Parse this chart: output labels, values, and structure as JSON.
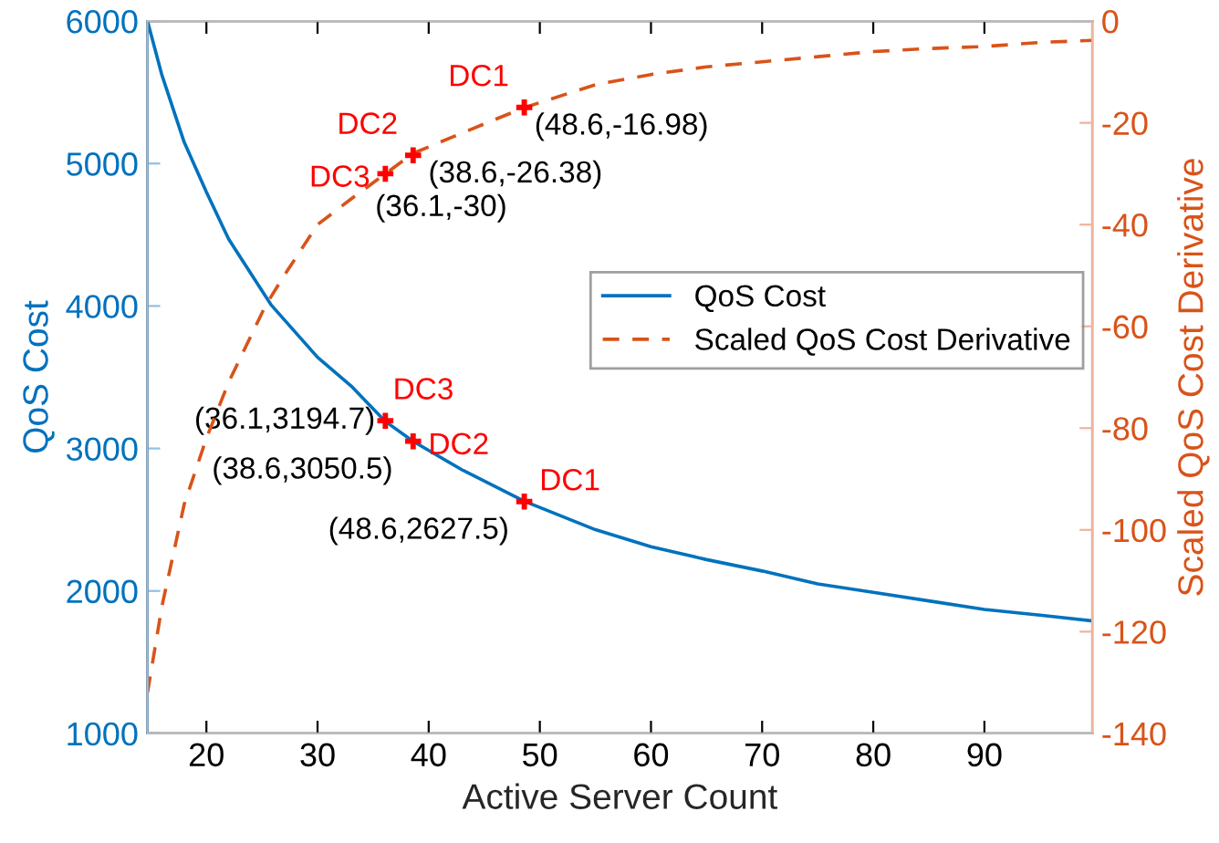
{
  "chart_data": {
    "type": "line",
    "xlabel": "Active Server Count",
    "ylabel": "QoS Cost",
    "y2label": "Scaled QoS Cost Derivative",
    "xlim": [
      14.7,
      99.7
    ],
    "xticks": [
      20,
      30,
      40,
      50,
      60,
      70,
      80,
      90
    ],
    "ylim": [
      1000,
      6000
    ],
    "yticks": [
      1000,
      2000,
      3000,
      4000,
      5000,
      6000
    ],
    "y2lim": [
      -140,
      0
    ],
    "y2ticks": [
      -140,
      -120,
      -100,
      -80,
      -60,
      -40,
      -20,
      0
    ],
    "grid": false,
    "legend": "right",
    "series": [
      {
        "name": "QoS Cost",
        "color": "#0072bd",
        "line_style": "solid",
        "marker": "none",
        "x": [
          14.7,
          16,
          18,
          20,
          22,
          25.8,
          30,
          33,
          36.1,
          38.6,
          43,
          48.6,
          55,
          60,
          65,
          70,
          75,
          80,
          85,
          90,
          95,
          99.7
        ],
        "values": [
          6000,
          5620,
          5150,
          4800,
          4470,
          4010,
          3640,
          3440,
          3190,
          3050,
          2850,
          2630,
          2430,
          2310,
          2220,
          2140,
          2050,
          1990,
          1930,
          1870,
          1830,
          1790
        ]
      },
      {
        "name": "Scaled QoS Cost Derivative",
        "axis": "y2",
        "color": "#d95319",
        "line_style": "dashed",
        "marker": "none",
        "x": [
          14.7,
          16,
          18,
          20,
          22,
          25.3,
          27,
          30,
          33,
          36.1,
          38.6,
          43,
          48.6,
          55,
          60,
          65,
          70,
          75,
          80,
          85,
          90,
          95,
          99.7
        ],
        "values": [
          -132,
          -115,
          -95,
          -82,
          -71,
          -56,
          -50,
          -40,
          -35,
          -30,
          -26,
          -22,
          -17,
          -12.5,
          -10.5,
          -9,
          -8,
          -7,
          -6,
          -5.4,
          -5,
          -4.2,
          -3.8
        ]
      },
      {
        "type": "scatter",
        "color": "#ff0000",
        "marker": "cross",
        "x": [
          36.1,
          38.6,
          48.6
        ],
        "values": [
          3194.7,
          3050.5,
          2627.5
        ]
      },
      {
        "type": "scatter",
        "axis": "y2",
        "color": "#ff0000",
        "marker": "cross",
        "x": [
          36.1,
          38.6,
          48.6
        ],
        "values": [
          -30,
          -26.38,
          -16.98
        ]
      }
    ],
    "annotations": [
      "DC3",
      "DC2",
      "DC1",
      "(36.1,-30)",
      "(38.6,-26.38)",
      "(48.6,-16.98)",
      {
        "text": "DC3",
        "x": 36.1,
        "y": 3194.7
      },
      {
        "text": "DC2",
        "x": 38.6,
        "y": 3050.5
      },
      {
        "text": "DC1",
        "x": 48.6,
        "y": 2627.5
      },
      {
        "text": "(36.1,3194.7)",
        "x": 36.1,
        "y": 3194.7
      },
      {
        "text": "(38.6,3050.5)",
        "x": 38.6,
        "y": 3050.5
      },
      {
        "text": "(48.6,2627.5)",
        "x": 48.6,
        "y": 2627.5
      }
    ]
  }
}
